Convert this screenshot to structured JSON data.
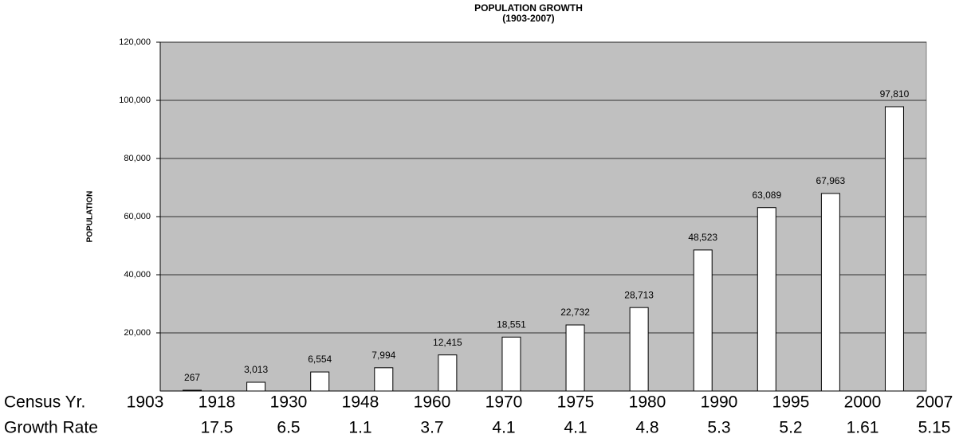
{
  "chart_data": {
    "type": "bar",
    "title": "POPULATION GROWTH",
    "subtitle": "(1903-2007)",
    "y_label": "POPULATION",
    "values": [
      267,
      3013,
      6554,
      7994,
      12415,
      18551,
      22732,
      28713,
      48523,
      63089,
      67963,
      97810
    ],
    "value_labels": [
      "267",
      "3,013",
      "6,554",
      "7,994",
      "12,415",
      "18,551",
      "22,732",
      "28,713",
      "48,523",
      "63,089",
      "67,963",
      "97,810"
    ],
    "color": "#ffffff",
    "ylim": [
      0,
      120000
    ],
    "yticks": [
      {
        "value": 20000,
        "label": "20,000"
      },
      {
        "value": 40000,
        "label": "40,000"
      },
      {
        "value": 60000,
        "label": "60,000"
      },
      {
        "value": 80000,
        "label": "80,000"
      },
      {
        "value": 100000,
        "label": "100,000"
      },
      {
        "value": 120000,
        "label": "120,000"
      }
    ],
    "grid": true,
    "census_row": {
      "label": "Census Yr.",
      "values": [
        "1903",
        "1918",
        "1930",
        "1948",
        "1960",
        "1970",
        "1975",
        "1980",
        "1990",
        "1995",
        "2000",
        "2007"
      ]
    },
    "growth_row": {
      "label": "Growth Rate",
      "values": [
        17.5,
        6.5,
        1.1,
        3.7,
        4.1,
        4.1,
        4.8,
        5.3,
        5.2,
        1.61,
        5.15
      ]
    }
  }
}
